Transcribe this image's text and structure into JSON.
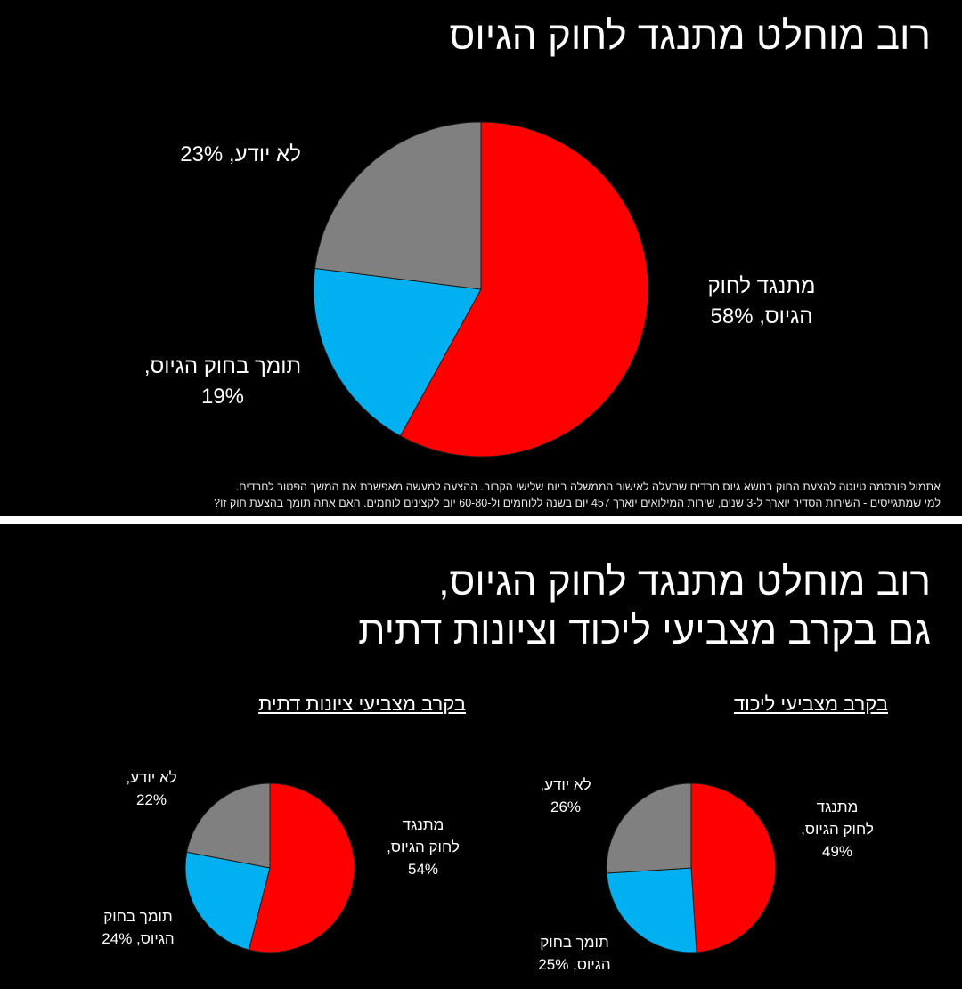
{
  "colors": {
    "oppose": "#ff0000",
    "support": "#00b0f0",
    "dontknow": "#808080"
  },
  "top": {
    "title": "רוב מוחלט מתנגד לחוק הגיוס",
    "footnote_1": "אתמול פורסמה טיוטה להצעת החוק בנושא גיוס חרדים שתעלה לאישור הממשלה ביום שלישי הקרוב. ההצעה למעשה מאפשרת את המשך הפטור לחרדים.",
    "footnote_2": "למי שמתגייסים - השירות הסדיר יוארך ל-3 שנים, שירות המילואים יוארך 457 יום בשנה ללוחמים ול-60-80 יום לקצינים לוחמים.  האם אתה תומך בהצעת חוק זו?",
    "labels": {
      "oppose_1": "מתנגד לחוק",
      "oppose_2": "הגיוס, 58%",
      "support_1": "תומך בחוק הגיוס,",
      "support_2": "19%",
      "dontknow": "לא יודע, 23%"
    }
  },
  "bottom": {
    "title_1": "רוב מוחלט מתנגד לחוק הגיוס,",
    "title_2": "גם בקרב מצביעי ליכוד וציונות דתית",
    "likud": {
      "subtitle": "בקרב מצביעי ליכוד",
      "labels": {
        "oppose_1": "מתנגד",
        "oppose_2": "לחוק הגיוס,",
        "oppose_3": "49%",
        "support_1": "תומך בחוק",
        "support_2": "הגיוס, 25%",
        "dontknow_1": "לא יודע,",
        "dontknow_2": "26%"
      }
    },
    "religious": {
      "subtitle": "בקרב מצביעי ציונות דתית",
      "labels": {
        "oppose_1": "מתנגד",
        "oppose_2": "לחוק הגיוס,",
        "oppose_3": "54%",
        "support_1": "תומך בחוק",
        "support_2": "הגיוס, 24%",
        "dontknow_1": "לא יודע,",
        "dontknow_2": "22%"
      }
    }
  },
  "chart_data": [
    {
      "type": "pie",
      "title": "רוב מוחלט מתנגד לחוק הגיוס",
      "slices": [
        {
          "name": "מתנגד לחוק הגיוס",
          "value": 58,
          "color": "#ff0000"
        },
        {
          "name": "תומך בחוק הגיוס",
          "value": 19,
          "color": "#00b0f0"
        },
        {
          "name": "לא יודע",
          "value": 23,
          "color": "#808080"
        }
      ]
    },
    {
      "type": "pie",
      "title": "בקרב מצביעי ליכוד",
      "slices": [
        {
          "name": "מתנגד לחוק הגיוס",
          "value": 49,
          "color": "#ff0000"
        },
        {
          "name": "תומך בחוק הגיוס",
          "value": 25,
          "color": "#00b0f0"
        },
        {
          "name": "לא יודע",
          "value": 26,
          "color": "#808080"
        }
      ]
    },
    {
      "type": "pie",
      "title": "בקרב מצביעי ציונות דתית",
      "slices": [
        {
          "name": "מתנגד לחוק הגיוס",
          "value": 54,
          "color": "#ff0000"
        },
        {
          "name": "תומך בחוק הגיוס",
          "value": 24,
          "color": "#00b0f0"
        },
        {
          "name": "לא יודע",
          "value": 22,
          "color": "#808080"
        }
      ]
    }
  ]
}
